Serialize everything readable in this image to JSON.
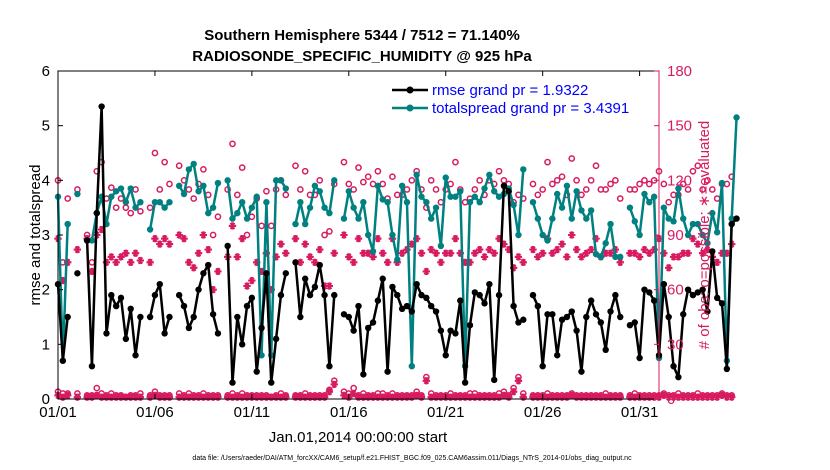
{
  "chart_data": {
    "type": "line",
    "title": "Southern Hemisphere 5344 / 7512 = 71.140%",
    "subtitle": "RADIOSONDE_SPECIFIC_HUMIDITY @ 925 hPa",
    "xlabel": "Jan.01,2014 00:00:00 start",
    "ylabel": "rmse and totalspread",
    "ylabel_right": "# of obs: o=possible; ∗=evaluated",
    "footnote": "data file: /Users/raeder/DAI/ATM_forcXX/CAM6_setup/f.e21.FHIST_BGC.f09_025.CAM6assim.011/Diags_NTrS_2014-01/obs_diag_output.nc",
    "xlim": [
      0,
      31
    ],
    "ylim": [
      0,
      6
    ],
    "ylim_right": [
      0,
      180
    ],
    "x_ticks": [
      0,
      5,
      10,
      15,
      20,
      25,
      30
    ],
    "x_tick_labels": [
      "01/01",
      "01/06",
      "01/11",
      "01/16",
      "01/21",
      "01/26",
      "01/31"
    ],
    "y_ticks": [
      0,
      1,
      2,
      3,
      4,
      5,
      6
    ],
    "y_tick_labels": [
      "0",
      "1",
      "2",
      "3",
      "4",
      "5",
      "6"
    ],
    "y_ticks_right": [
      0,
      30,
      60,
      90,
      120,
      150,
      180
    ],
    "y_tick_labels_right": [
      "0",
      "30",
      "60",
      "90",
      "120",
      "150",
      "180"
    ],
    "x_step": 0.25,
    "legend": [
      {
        "label": "rmse grand pr = 1.9322",
        "color": "#000000"
      },
      {
        "label": "totalspread grand pr = 3.4391",
        "color": "#008080"
      }
    ],
    "colors": {
      "rmse": "#000000",
      "spread": "#008080",
      "obs": "#d81b60",
      "axis": "#000000",
      "axis_right": "#d81b60"
    },
    "series": [
      {
        "name": "rmse",
        "values": [
          2.1,
          0.7,
          1.5,
          null,
          2.3,
          null,
          2.9,
          0.6,
          3.4,
          5.35,
          1.2,
          1.9,
          1.7,
          1.85,
          1.1,
          1.65,
          0.8,
          1.5,
          null,
          1.5,
          1.9,
          2.1,
          1.2,
          1.5,
          null,
          1.9,
          1.7,
          1.3,
          1.5,
          2.0,
          2.3,
          2.45,
          1.55,
          1.2,
          null,
          2.8,
          0.3,
          1.5,
          1.0,
          1.7,
          1.85,
          0.5,
          1.3,
          2.3,
          0.3,
          1.1,
          1.9,
          2.3,
          null,
          2.5,
          1.5,
          2.2,
          1.9,
          2.05,
          2.45,
          1.9,
          0.6,
          1.9,
          null,
          1.55,
          1.5,
          1.25,
          1.7,
          0.45,
          1.3,
          1.4,
          1.8,
          2.2,
          0.5,
          2.05,
          1.9,
          1.65,
          1.7,
          1.6,
          2.1,
          1.9,
          1.85,
          1.7,
          1.6,
          1.25,
          0.8,
          1.25,
          1.2,
          1.8,
          0.3,
          1.35,
          1.95,
          1.9,
          1.75,
          2.1,
          0.35,
          1.9,
          3.9,
          3.8,
          1.7,
          1.4,
          1.45,
          null,
          1.9,
          1.7,
          0.6,
          1.55,
          1.55,
          0.8,
          1.45,
          1.5,
          1.6,
          1.25,
          0.5,
          1.5,
          1.8,
          1.55,
          1.4,
          0.9,
          1.6,
          1.9,
          1.5,
          null,
          1.35,
          1.4,
          0.75,
          2.0,
          1.95,
          1.8,
          0.8,
          2.1,
          1.5,
          0.6,
          0.4,
          1.55,
          2.0,
          1.9,
          1.95,
          2.0,
          1.6,
          2.7,
          1.85,
          1.75,
          0.55,
          3.2,
          3.3
        ]
      },
      {
        "name": "totalspread",
        "values": [
          3.7,
          0.7,
          3.2,
          null,
          3.75,
          null,
          2.9,
          2.9,
          3.4,
          3.7,
          3.2,
          3.7,
          3.8,
          3.85,
          3.6,
          3.85,
          3.5,
          3.6,
          null,
          3.1,
          3.6,
          3.6,
          3.5,
          3.6,
          null,
          3.9,
          3.75,
          4.2,
          4.3,
          3.8,
          3.9,
          3.4,
          3.5,
          3.95,
          null,
          4.0,
          3.3,
          3.4,
          3.6,
          3.3,
          3.5,
          3.7,
          0.8,
          3.6,
          0.8,
          4.0,
          4.0,
          3.85,
          null,
          3.2,
          3.6,
          3.2,
          3.5,
          3.9,
          3.8,
          3.5,
          3.4,
          4.0,
          null,
          3.3,
          3.8,
          3.5,
          3.3,
          3.6,
          3.0,
          2.7,
          3.9,
          3.65,
          3.6,
          3.0,
          2.55,
          3.9,
          3.6,
          0.6,
          4.1,
          3.7,
          3.6,
          3.3,
          3.5,
          2.8,
          4.05,
          3.7,
          3.7,
          3.8,
          0.6,
          3.6,
          3.7,
          3.6,
          3.85,
          4.1,
          3.8,
          3.7,
          3.75,
          3.85,
          3.55,
          3.0,
          4.2,
          null,
          3.6,
          3.3,
          3.0,
          2.9,
          3.3,
          3.75,
          3.5,
          3.9,
          3.3,
          3.8,
          3.45,
          3.3,
          3.45,
          2.65,
          2.6,
          2.85,
          3.2,
          2.6,
          2.6,
          null,
          3.5,
          3.25,
          3.0,
          3.75,
          3.6,
          3.7,
          0.75,
          3.5,
          3.3,
          3.25,
          3.85,
          3.3,
          3.0,
          3.2,
          3.2,
          3.0,
          2.85,
          3.4,
          3.05,
          3.95,
          0.7,
          3.3,
          5.15
        ]
      },
      {
        "name": "obs_possible",
        "values": [
          120,
          75,
          110,
          null,
          115,
          null,
          90,
          75,
          125,
          130,
          110,
          116,
          105,
          110,
          105,
          102,
          115,
          103,
          null,
          105,
          135,
          115,
          130,
          118,
          null,
          128,
          120,
          115,
          110,
          118,
          126,
          112,
          90,
          100,
          null,
          115,
          140,
          112,
          127,
          90,
          100,
          110,
          95,
          114,
          95,
          115,
          120,
          112,
          null,
          128,
          115,
          125,
          112,
          112,
          120,
          90,
          92,
          118,
          null,
          130,
          118,
          115,
          127,
          119,
          122,
          118,
          125,
          118,
          110,
          122,
          112,
          112,
          115,
          120,
          125,
          115,
          105,
          120,
          115,
          108,
          115,
          118,
          130,
          115,
          108,
          110,
          115,
          120,
          112,
          120,
          118,
          125,
          120,
          118,
          108,
          112,
          110,
          null,
          118,
          112,
          115,
          130,
          118,
          120,
          122,
          112,
          132,
          120,
          112,
          115,
          120,
          128,
          115,
          115,
          118,
          120,
          110,
          null,
          115,
          115,
          118,
          120,
          118,
          120,
          125,
          118,
          108,
          112,
          112,
          118,
          115,
          125,
          128,
          115,
          120,
          115,
          110,
          118,
          118,
          122
        ]
      },
      {
        "name": "obs_evaluated",
        "values": [
          88,
          65,
          75,
          null,
          82,
          null,
          88,
          70,
          90,
          93,
          75,
          78,
          75,
          78,
          80,
          75,
          80,
          76,
          null,
          75,
          88,
          85,
          88,
          85,
          null,
          90,
          88,
          75,
          72,
          80,
          90,
          82,
          60,
          70,
          null,
          78,
          95,
          78,
          88,
          62,
          65,
          75,
          70,
          80,
          60,
          78,
          85,
          80,
          null,
          88,
          75,
          85,
          78,
          75,
          82,
          62,
          62,
          80,
          null,
          90,
          78,
          75,
          88,
          80,
          80,
          78,
          88,
          80,
          75,
          88,
          75,
          80,
          82,
          85,
          88,
          80,
          70,
          82,
          80,
          75,
          80,
          80,
          88,
          80,
          75,
          75,
          80,
          82,
          78,
          82,
          80,
          88,
          85,
          82,
          72,
          78,
          75,
          null,
          82,
          78,
          80,
          88,
          80,
          82,
          85,
          78,
          90,
          82,
          78,
          80,
          82,
          88,
          78,
          80,
          80,
          82,
          75,
          null,
          80,
          80,
          78,
          82,
          80,
          82,
          88,
          80,
          72,
          78,
          78,
          80,
          80,
          88,
          85,
          80,
          82,
          78,
          75,
          80,
          80,
          85
        ]
      },
      {
        "name": "obs_low_possible",
        "values": [
          4,
          3,
          3,
          null,
          3,
          null,
          2,
          2,
          6,
          3,
          2,
          3,
          2,
          2,
          1,
          2,
          2,
          3,
          null,
          2,
          4,
          2,
          2,
          2,
          null,
          3,
          2,
          3,
          2,
          2,
          3,
          2,
          2,
          2,
          null,
          2,
          3,
          2,
          3,
          2,
          2,
          2,
          2,
          2,
          1,
          2,
          3,
          2,
          null,
          2,
          2,
          3,
          2,
          2,
          2,
          2,
          5,
          10,
          null,
          4,
          3,
          6,
          2,
          3,
          2,
          2,
          3,
          3,
          2,
          3,
          2,
          2,
          2,
          2,
          4,
          2,
          12,
          3,
          2,
          2,
          2,
          3,
          2,
          2,
          2,
          3,
          3,
          2,
          2,
          2,
          2,
          3,
          4,
          2,
          6,
          12,
          3,
          null,
          2,
          2,
          2,
          3,
          2,
          2,
          2,
          2,
          3,
          2,
          2,
          2,
          2,
          2,
          2,
          3,
          2,
          2,
          2,
          null,
          2,
          3,
          2,
          2,
          2,
          2,
          2,
          3,
          2,
          2,
          3,
          2,
          2,
          2,
          3,
          2,
          2,
          2,
          2,
          3,
          2,
          2
        ]
      },
      {
        "name": "obs_low_evaluated",
        "values": [
          2,
          1,
          2,
          null,
          1,
          null,
          1,
          1,
          2,
          1,
          1,
          1,
          1,
          1,
          1,
          1,
          1,
          1,
          null,
          1,
          2,
          1,
          1,
          1,
          null,
          1,
          1,
          1,
          1,
          1,
          1,
          1,
          1,
          1,
          null,
          1,
          1,
          1,
          1,
          1,
          1,
          1,
          1,
          1,
          1,
          1,
          1,
          1,
          null,
          1,
          1,
          1,
          1,
          1,
          1,
          1,
          4,
          8,
          null,
          2,
          1,
          3,
          1,
          1,
          1,
          1,
          1,
          1,
          1,
          1,
          1,
          1,
          1,
          1,
          2,
          1,
          10,
          1,
          1,
          1,
          1,
          1,
          1,
          1,
          1,
          1,
          1,
          1,
          1,
          1,
          1,
          1,
          2,
          1,
          4,
          10,
          1,
          null,
          1,
          1,
          1,
          1,
          1,
          1,
          1,
          1,
          2,
          1,
          1,
          1,
          1,
          1,
          1,
          1,
          1,
          1,
          1,
          null,
          1,
          1,
          1,
          1,
          1,
          1,
          1,
          2,
          1,
          1,
          1,
          1,
          1,
          1,
          1,
          1,
          1,
          1,
          1,
          2,
          1,
          1
        ]
      }
    ]
  }
}
